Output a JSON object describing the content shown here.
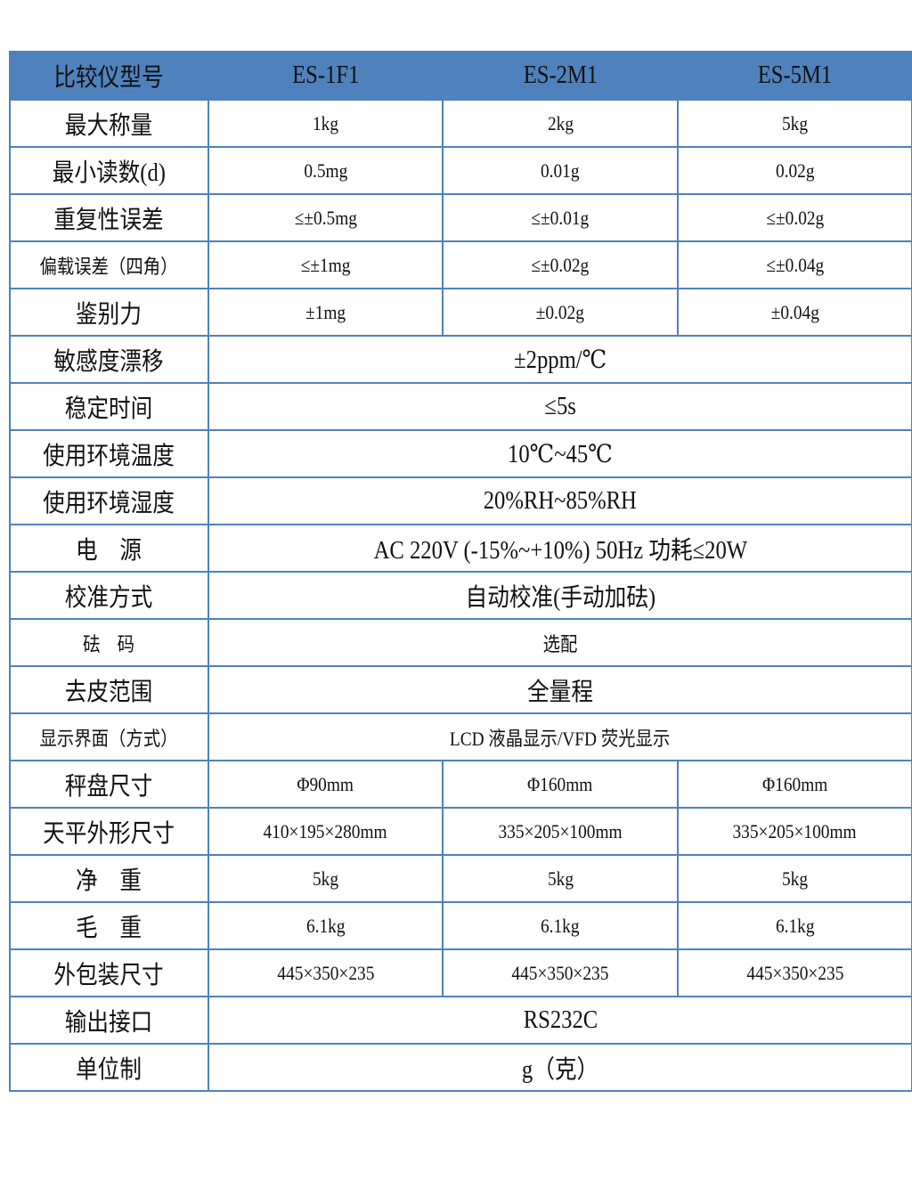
{
  "table": {
    "header": [
      "比较仪型号",
      "ES-1F1",
      "ES-2M1",
      "ES-5M1"
    ],
    "rows": [
      [
        "最大称量",
        "1kg",
        "2kg",
        "5kg"
      ],
      [
        "最小读数(d)",
        "0.5mg",
        "0.01g",
        "0.02g"
      ],
      [
        "重复性误差",
        "≤±0.5mg",
        "≤±0.01g",
        "≤±0.02g"
      ],
      [
        "偏载误差（四角）",
        "≤±1mg",
        "≤±0.02g",
        "≤±0.04g"
      ],
      [
        "鉴别力",
        "±1mg",
        "±0.02g",
        "±0.04g"
      ],
      [
        "敏感度漂移",
        "±2ppm/℃"
      ],
      [
        "稳定时间",
        "≤5s"
      ],
      [
        "使用环境温度",
        "10℃~45℃"
      ],
      [
        "使用环境湿度",
        "20%RH~85%RH"
      ],
      [
        "电　源",
        "AC 220V (-15%~+10%) 50Hz  功耗≤20W"
      ],
      [
        "校准方式",
        "自动校准(手动加砝)"
      ],
      [
        "砝　码",
        "选配"
      ],
      [
        "去皮范围",
        "全量程"
      ],
      [
        "显示界面（方式）",
        "LCD  液晶显示/VFD  荧光显示"
      ],
      [
        "秤盘尺寸",
        "Φ90mm",
        "Φ160mm",
        "Φ160mm"
      ],
      [
        "天平外形尺寸",
        "410×195×280mm",
        "335×205×100mm",
        "335×205×100mm"
      ],
      [
        "净　重",
        "5kg",
        "5kg",
        "5kg"
      ],
      [
        "毛　重",
        "6.1kg",
        "6.1kg",
        "6.1kg"
      ],
      [
        "外包装尺寸",
        "445×350×235",
        "445×350×235",
        "445×350×235"
      ],
      [
        "输出接口",
        "RS232C"
      ],
      [
        "单位制",
        "g（克）"
      ]
    ]
  }
}
